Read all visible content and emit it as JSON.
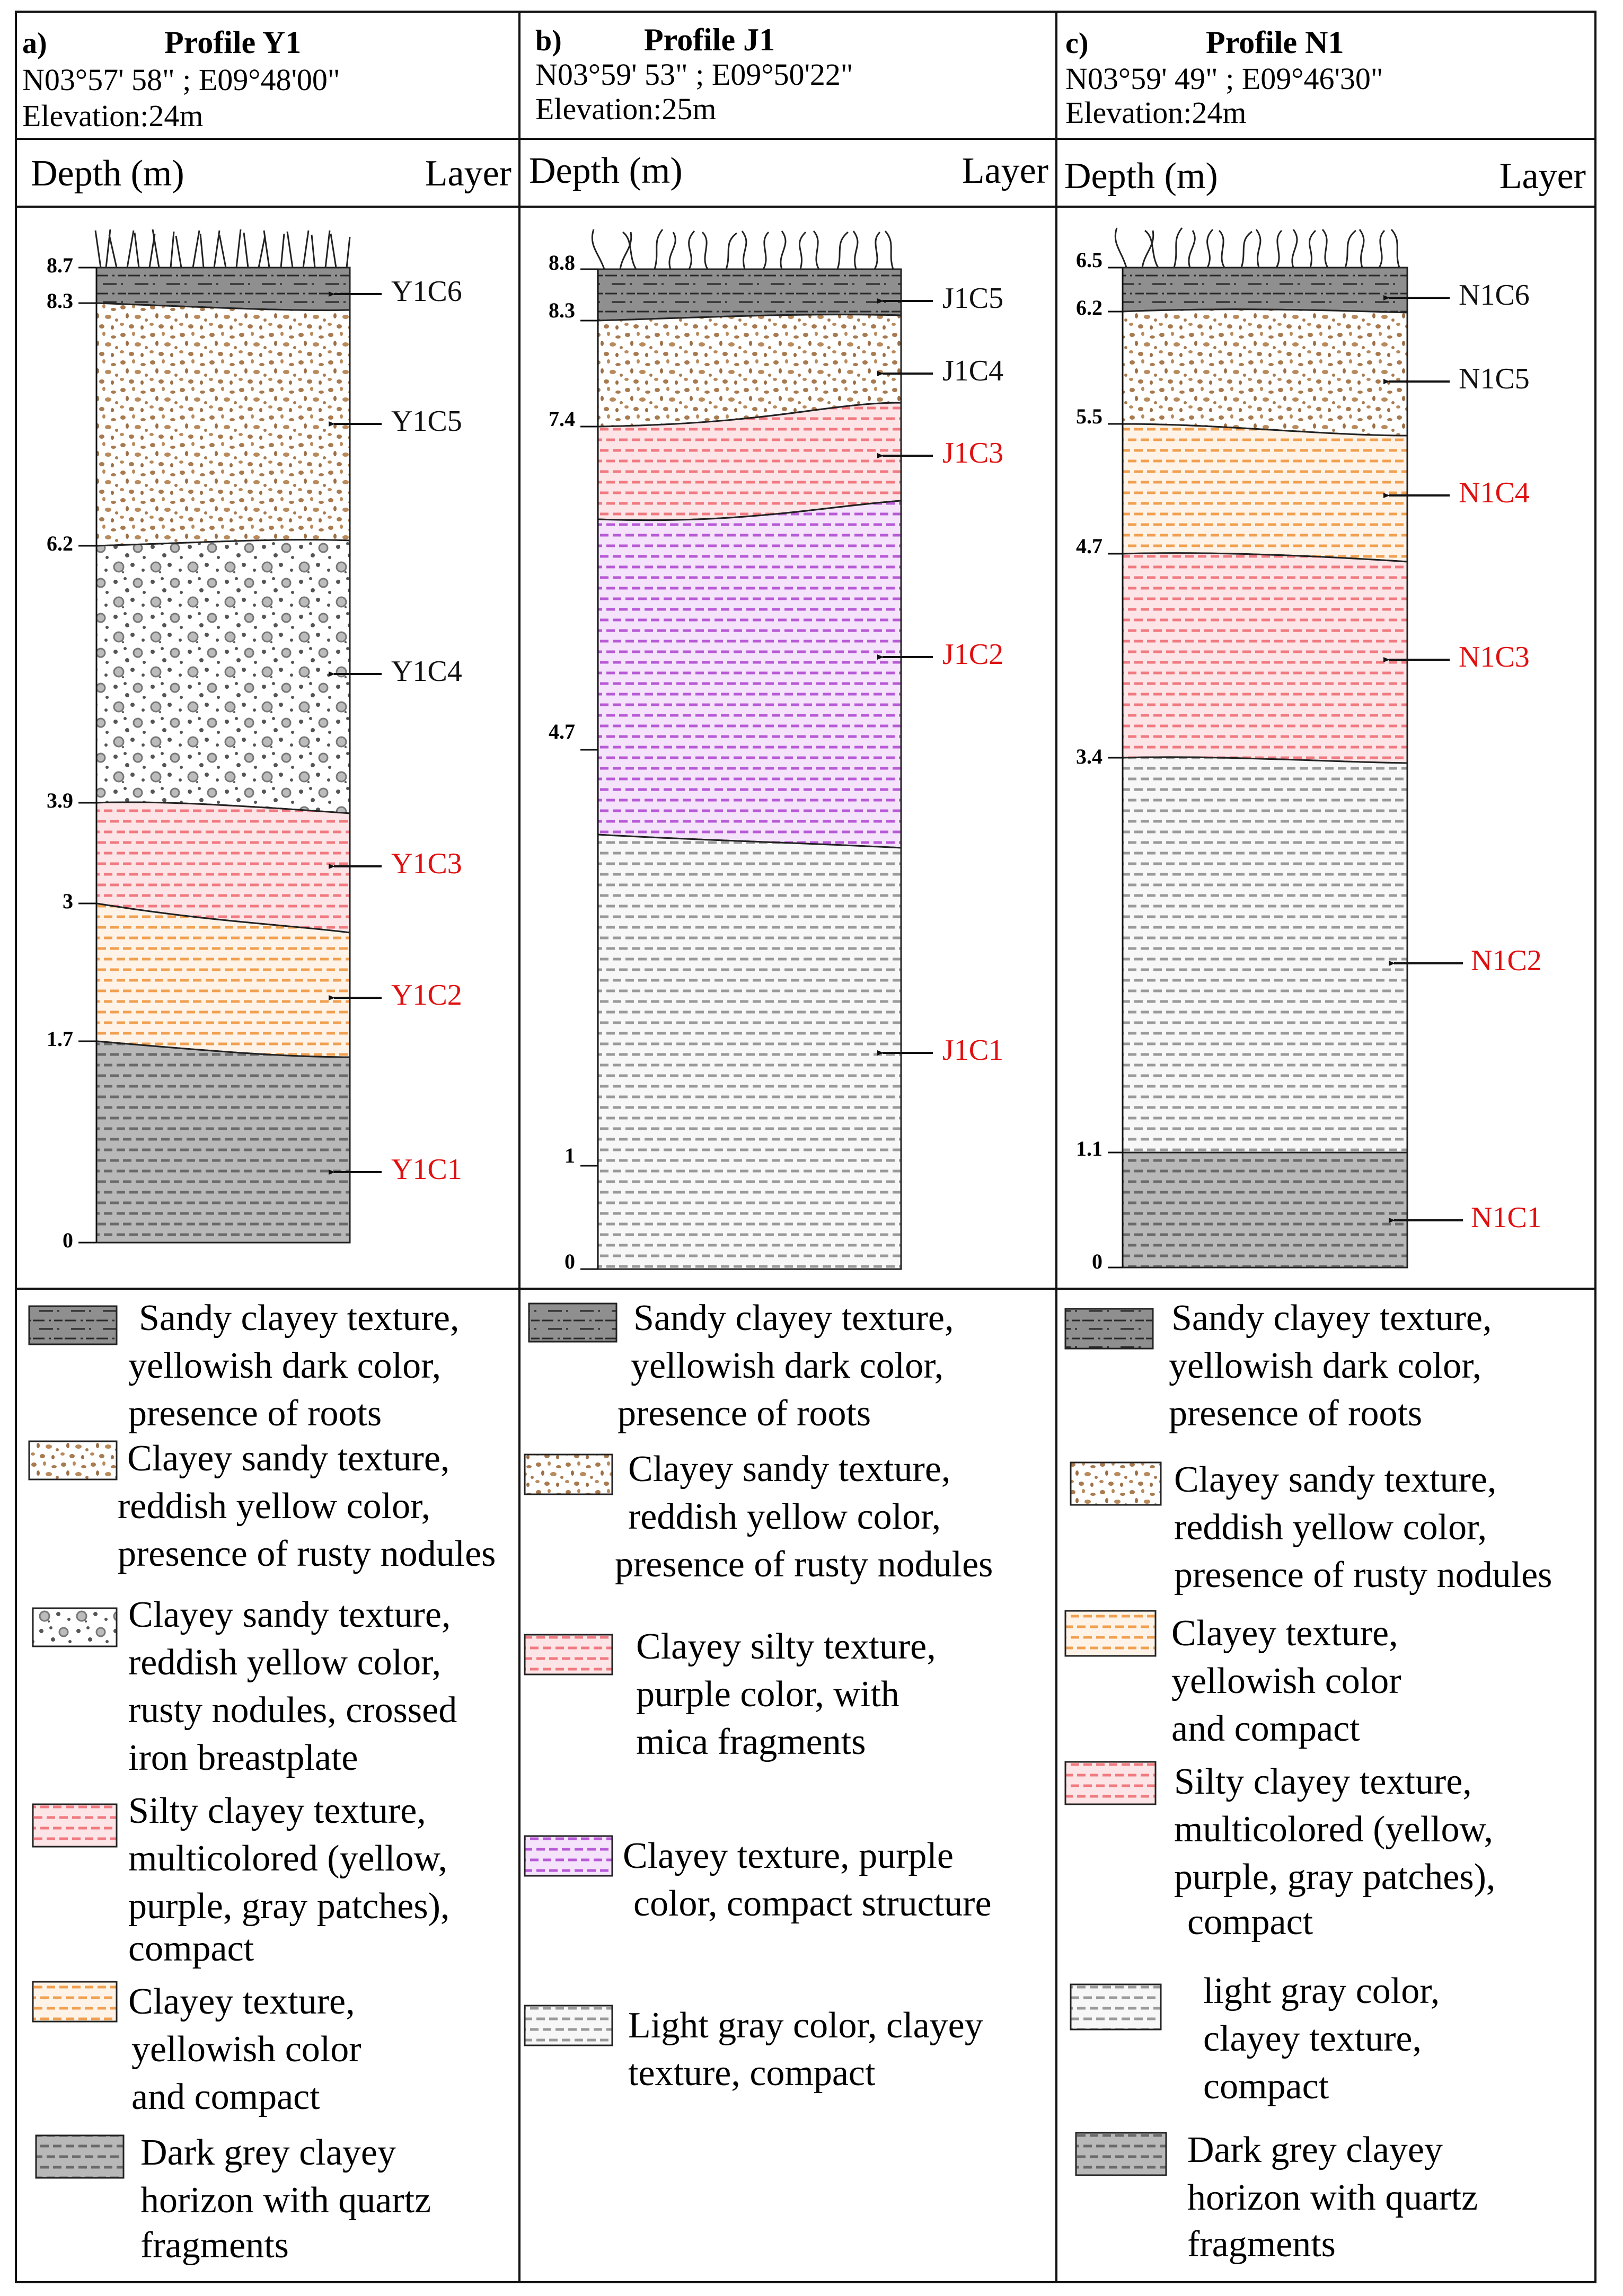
{
  "colors": {
    "sandy_clayey_dark": "#8f8f8f",
    "clayey_sandy_nodules": "#a87a4f",
    "crossed_iron": "#666666",
    "red_silt": "#f07a80",
    "orange_clay": "#f0a050",
    "purple_clay": "#b85ad6",
    "light_gray": "#9a9a9a",
    "dark_gray_base": "#b8b8b8",
    "label_black": "#111111",
    "label_red": "#e01010"
  },
  "profiles": [
    {
      "letter": "a)",
      "title": "Profile Y1",
      "coords": "N03°57' 58\" ; E09°48'00\"",
      "elevation": "Elevation:24m",
      "depth_header": "Depth (m)",
      "layer_header": "Layer",
      "depth_ticks": [
        "8.7",
        "8.3",
        "6.2",
        "3.9",
        "3",
        "1.7",
        "0"
      ],
      "layers": [
        {
          "code": "Y1C6",
          "pattern": "sandy_clayey_dark",
          "label_color": "black"
        },
        {
          "code": "Y1C5",
          "pattern": "clayey_sandy_nodules",
          "label_color": "black"
        },
        {
          "code": "Y1C4",
          "pattern": "crossed_iron",
          "label_color": "black"
        },
        {
          "code": "Y1C3",
          "pattern": "red_silt",
          "label_color": "red"
        },
        {
          "code": "Y1C2",
          "pattern": "orange_clay",
          "label_color": "red"
        },
        {
          "code": "Y1C1",
          "pattern": "dark_gray_base",
          "label_color": "red"
        }
      ],
      "legend": [
        {
          "pattern": "sandy_clayey_dark",
          "lines": [
            "Sandy clayey texture,",
            "yellowish dark color,",
            "presence of roots"
          ]
        },
        {
          "pattern": "clayey_sandy_nodules",
          "lines": [
            "Clayey sandy texture,",
            "reddish yellow color,",
            "presence of rusty nodules"
          ]
        },
        {
          "pattern": "crossed_iron",
          "lines": [
            "Clayey sandy texture,",
            "reddish yellow color,",
            "rusty nodules, crossed",
            "iron breastplate"
          ]
        },
        {
          "pattern": "red_silt",
          "lines": [
            "Silty clayey texture,",
            "multicolored (yellow,",
            "purple, gray patches),",
            "compact"
          ]
        },
        {
          "pattern": "orange_clay",
          "lines": [
            "Clayey texture,",
            "yellowish color",
            "and compact"
          ]
        },
        {
          "pattern": "dark_gray_base",
          "lines": [
            "Dark grey clayey",
            "horizon with quartz",
            "fragments"
          ]
        }
      ]
    },
    {
      "letter": "b)",
      "title": "Profile J1",
      "coords": "N03°59' 53\" ; E09°50'22\"",
      "elevation": "Elevation:25m",
      "depth_header": "Depth (m)",
      "layer_header": "Layer",
      "depth_ticks": [
        "8.8",
        "8.3",
        "7.4",
        "4.7",
        "1",
        "0"
      ],
      "layers": [
        {
          "code": "J1C5",
          "pattern": "sandy_clayey_dark",
          "label_color": "black"
        },
        {
          "code": "J1C4",
          "pattern": "clayey_sandy_nodules",
          "label_color": "black"
        },
        {
          "code": "J1C3",
          "pattern": "red_silt",
          "label_color": "red"
        },
        {
          "code": "J1C2",
          "pattern": "purple_clay",
          "label_color": "red"
        },
        {
          "code": "J1C1",
          "pattern": "light_gray",
          "label_color": "red"
        }
      ],
      "legend": [
        {
          "pattern": "sandy_clayey_dark",
          "lines": [
            "Sandy clayey texture,",
            "yellowish dark color,",
            "presence of roots"
          ]
        },
        {
          "pattern": "clayey_sandy_nodules",
          "lines": [
            "Clayey sandy texture,",
            "reddish yellow color,",
            "presence of rusty nodules"
          ]
        },
        {
          "pattern": "red_silt",
          "lines": [
            "Clayey silty texture,",
            "purple color, with",
            "mica fragments"
          ]
        },
        {
          "pattern": "purple_clay",
          "lines": [
            "Clayey texture, purple",
            "color, compact structure"
          ]
        },
        {
          "pattern": "light_gray",
          "lines": [
            "Light gray color, clayey",
            "texture, compact"
          ]
        }
      ]
    },
    {
      "letter": "c)",
      "title": "Profile N1",
      "coords": "N03°59' 49\" ; E09°46'30\"",
      "elevation": "Elevation:24m",
      "depth_header": "Depth (m)",
      "layer_header": "Layer",
      "depth_ticks": [
        "6.5",
        "6.2",
        "5.5",
        "4.7",
        "3.4",
        "1.1",
        "0"
      ],
      "layers": [
        {
          "code": "N1C6",
          "pattern": "sandy_clayey_dark",
          "label_color": "black"
        },
        {
          "code": "N1C5",
          "pattern": "clayey_sandy_nodules",
          "label_color": "black"
        },
        {
          "code": "N1C4",
          "pattern": "orange_clay",
          "label_color": "red"
        },
        {
          "code": "N1C3",
          "pattern": "red_silt",
          "label_color": "red"
        },
        {
          "code": "N1C2",
          "pattern": "light_gray",
          "label_color": "red"
        },
        {
          "code": "N1C1",
          "pattern": "dark_gray_base",
          "label_color": "red"
        }
      ],
      "legend": [
        {
          "pattern": "sandy_clayey_dark",
          "lines": [
            "Sandy clayey texture,",
            "yellowish dark color,",
            "presence of roots"
          ]
        },
        {
          "pattern": "clayey_sandy_nodules",
          "lines": [
            "Clayey sandy texture,",
            "reddish yellow color,",
            "presence of rusty nodules"
          ]
        },
        {
          "pattern": "orange_clay",
          "lines": [
            "Clayey texture,",
            "yellowish color",
            " and compact"
          ]
        },
        {
          "pattern": "red_silt",
          "lines": [
            "Silty clayey texture,",
            "multicolored (yellow,",
            " purple, gray patches),",
            "compact"
          ]
        },
        {
          "pattern": "light_gray",
          "lines": [
            "light gray color,",
            "clayey texture,",
            "compact"
          ]
        },
        {
          "pattern": "dark_gray_base",
          "lines": [
            "Dark grey clayey",
            "horizon with quartz",
            "fragments"
          ]
        }
      ]
    }
  ]
}
